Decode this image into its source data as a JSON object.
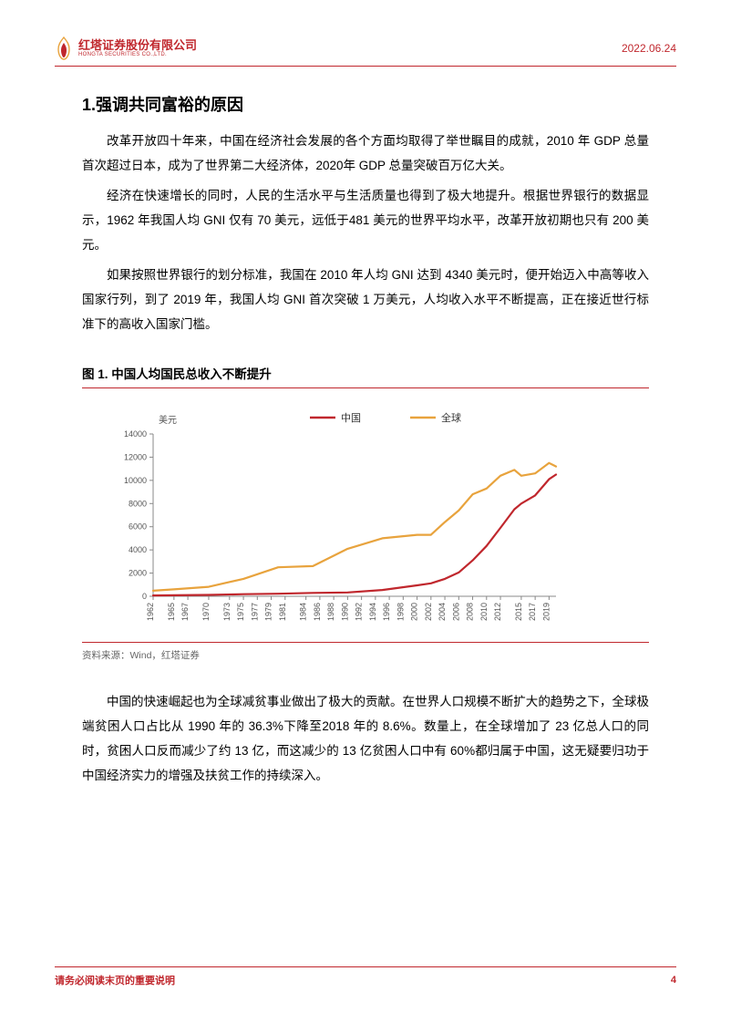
{
  "header": {
    "company_cn": "红塔证券股份有限公司",
    "company_en": "HONGTA SECURITIES CO.,LTD.",
    "date": "2022.06.24"
  },
  "colors": {
    "brand_red": "#c0272d",
    "text_black": "#000000",
    "text_gray": "#666666",
    "series_china": "#c0272d",
    "series_global": "#e8a33d",
    "axis_gray": "#888888",
    "background": "#ffffff"
  },
  "section": {
    "title": "1.强调共同富裕的原因",
    "p1": "改革开放四十年来，中国在经济社会发展的各个方面均取得了举世瞩目的成就，2010 年 GDP 总量首次超过日本，成为了世界第二大经济体，2020年 GDP 总量突破百万亿大关。",
    "p2": "经济在快速增长的同时，人民的生活水平与生活质量也得到了极大地提升。根据世界银行的数据显示，1962 年我国人均 GNI 仅有 70 美元，远低于481 美元的世界平均水平，改革开放初期也只有 200 美元。",
    "p3": "如果按照世界银行的划分标准，我国在 2010 年人均 GNI 达到 4340 美元时，便开始迈入中高等收入国家行列，到了 2019 年，我国人均 GNI 首次突破 1 万美元，人均收入水平不断提高，正在接近世行标准下的高收入国家门槛。",
    "p4": "中国的快速崛起也为全球减贫事业做出了极大的贡献。在世界人口规模不断扩大的趋势之下，全球极端贫困人口占比从 1990 年的 36.3%下降至2018 年的 8.6%。数量上，在全球增加了 23 亿总人口的同时，贫困人口反而减少了约 13 亿，而这减少的 13 亿贫困人口中有 60%都归属于中国，这无疑要归功于中国经济实力的增强及扶贫工作的持续深入。"
  },
  "figure": {
    "title": "图 1. 中国人均国民总收入不断提升",
    "source": "资料来源：Wind，红塔证券",
    "chart": {
      "type": "line",
      "ylabel": "美元",
      "label_fontsize": 10,
      "legend": {
        "items": [
          "中国",
          "全球"
        ],
        "colors": [
          "#c0272d",
          "#e8a33d"
        ]
      },
      "ylim": [
        0,
        14000
      ],
      "ytick_step": 2000,
      "yticks": [
        0,
        2000,
        4000,
        6000,
        8000,
        10000,
        12000,
        14000
      ],
      "xticks": [
        1962,
        1965,
        1967,
        1970,
        1973,
        1975,
        1977,
        1979,
        1981,
        1984,
        1986,
        1988,
        1990,
        1992,
        1994,
        1996,
        1998,
        2000,
        2002,
        2004,
        2006,
        2008,
        2010,
        2012,
        2015,
        2017,
        2019
      ],
      "line_width": 2.2,
      "background_color": "#ffffff",
      "axis_color": "#888888",
      "tick_fontsize": 9,
      "series": {
        "china": {
          "color": "#c0272d",
          "years": [
            1962,
            1965,
            1970,
            1975,
            1980,
            1985,
            1990,
            1995,
            2000,
            2002,
            2004,
            2006,
            2008,
            2010,
            2012,
            2014,
            2015,
            2017,
            2019,
            2020
          ],
          "values": [
            70,
            90,
            120,
            180,
            220,
            290,
            330,
            540,
            940,
            1120,
            1500,
            2050,
            3100,
            4340,
            5900,
            7500,
            8000,
            8700,
            10100,
            10500
          ]
        },
        "global": {
          "color": "#e8a33d",
          "years": [
            1962,
            1965,
            1970,
            1975,
            1980,
            1985,
            1990,
            1995,
            2000,
            2002,
            2004,
            2006,
            2008,
            2010,
            2012,
            2014,
            2015,
            2017,
            2019,
            2020
          ],
          "values": [
            481,
            600,
            820,
            1500,
            2500,
            2600,
            4100,
            5000,
            5300,
            5300,
            6400,
            7400,
            8800,
            9300,
            10400,
            10900,
            10400,
            10600,
            11500,
            11200
          ]
        }
      }
    }
  },
  "footer": {
    "note": "请务必阅读末页的重要说明",
    "page": "4"
  }
}
